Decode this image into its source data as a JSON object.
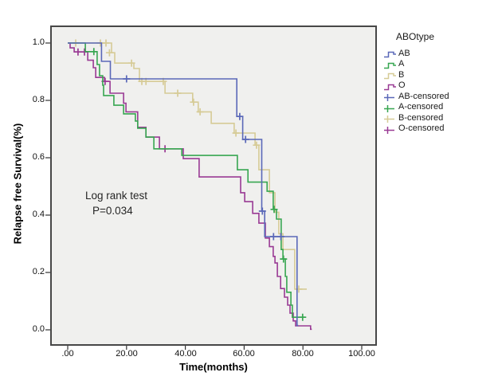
{
  "chart_data": {
    "type": "line",
    "subtype": "kaplan-meier-step",
    "title": "",
    "xlabel": "Time(months)",
    "ylabel": "Relapse free Survival(%)",
    "xlim": [
      -5.7,
      104.9
    ],
    "ylim": [
      -0.053,
      1.058
    ],
    "grid": false,
    "legend_position": "right-outside",
    "legend_title": "ABOtype",
    "legend_items": [
      "AB",
      "A",
      "B",
      "O",
      "AB-censored",
      "A-censored",
      "B-censored",
      "O-censored"
    ],
    "x_ticks": [
      0,
      20,
      40,
      60,
      80,
      100
    ],
    "x_tick_labels": [
      ".00",
      "20.00",
      "40.00",
      "60.00",
      "80.00",
      "100.00"
    ],
    "y_ticks": [
      0,
      0.2,
      0.4,
      0.6,
      0.8,
      1.0
    ],
    "y_tick_labels": [
      "0.0",
      "0.2",
      "0.4",
      "0.6",
      "0.8",
      "1.0"
    ],
    "annotation": {
      "line1": "Log rank test",
      "line2": "P=0.034"
    },
    "plot_bg": "#f0f0ee",
    "frame_color": "#474747",
    "axis_color": "#333333",
    "draw_order": [
      3,
      2,
      1,
      0
    ],
    "series": [
      {
        "name": "AB",
        "color": "#5a68b8",
        "steps": [
          [
            11.5,
            0.936
          ],
          [
            14.5,
            0.875
          ],
          [
            57.5,
            0.744
          ],
          [
            59.5,
            0.664
          ],
          [
            66,
            0.414
          ],
          [
            67,
            0.325
          ],
          [
            78,
            0.015
          ]
        ],
        "end_t": 78.4,
        "censored": [
          [
            20,
            0.875
          ],
          [
            58.5,
            0.744
          ],
          [
            60.5,
            0.664
          ],
          [
            66.2,
            0.414
          ],
          [
            70,
            0.325
          ],
          [
            72.5,
            0.325
          ]
        ]
      },
      {
        "name": "A",
        "color": "#37a650",
        "steps": [
          [
            6,
            0.97
          ],
          [
            10,
            0.925
          ],
          [
            10.8,
            0.886
          ],
          [
            11.9,
            0.853
          ],
          [
            12.2,
            0.817
          ],
          [
            15.7,
            0.783
          ],
          [
            19,
            0.753
          ],
          [
            23,
            0.728
          ],
          [
            23.8,
            0.703
          ],
          [
            26.6,
            0.672
          ],
          [
            29.3,
            0.631
          ],
          [
            38.8,
            0.608
          ],
          [
            57.7,
            0.558
          ],
          [
            61.3,
            0.515
          ],
          [
            67.8,
            0.483
          ],
          [
            69.9,
            0.42
          ],
          [
            71,
            0.386
          ],
          [
            72.6,
            0.28
          ],
          [
            73.2,
            0.247
          ],
          [
            74,
            0.186
          ],
          [
            74.5,
            0.131
          ],
          [
            75.9,
            0.086
          ],
          [
            76.4,
            0.044
          ]
        ],
        "end_t": 80.7,
        "censored": [
          [
            8.9,
            0.97
          ],
          [
            70.2,
            0.42
          ],
          [
            73.4,
            0.247
          ],
          [
            79.9,
            0.044
          ]
        ]
      },
      {
        "name": "B",
        "color": "#d6cb96",
        "steps": [
          [
            14.9,
            0.966
          ],
          [
            16,
            0.93
          ],
          [
            22.5,
            0.911
          ],
          [
            24.4,
            0.866
          ],
          [
            33.1,
            0.825
          ],
          [
            42.5,
            0.794
          ],
          [
            44.4,
            0.76
          ],
          [
            48.8,
            0.72
          ],
          [
            56.6,
            0.686
          ],
          [
            63.7,
            0.644
          ],
          [
            65,
            0.558
          ],
          [
            68.6,
            0.478
          ],
          [
            70.5,
            0.41
          ],
          [
            71.8,
            0.335
          ],
          [
            73.2,
            0.28
          ],
          [
            77.2,
            0.142
          ]
        ],
        "end_t": 81.3,
        "censored": [
          [
            2.7,
            1.0
          ],
          [
            11.1,
            1.0
          ],
          [
            13,
            1.0
          ],
          [
            14.2,
            0.966
          ],
          [
            21.7,
            0.93
          ],
          [
            25.2,
            0.866
          ],
          [
            26.6,
            0.866
          ],
          [
            32.5,
            0.866
          ],
          [
            37.4,
            0.825
          ],
          [
            42.8,
            0.794
          ],
          [
            45,
            0.76
          ],
          [
            57.2,
            0.686
          ],
          [
            64.2,
            0.644
          ],
          [
            78.6,
            0.142
          ]
        ]
      },
      {
        "name": "O",
        "color": "#993a94",
        "steps": [
          [
            0.8,
            0.983
          ],
          [
            2.2,
            0.969
          ],
          [
            6.8,
            0.94
          ],
          [
            8.7,
            0.914
          ],
          [
            9.5,
            0.88
          ],
          [
            12.5,
            0.866
          ],
          [
            14.4,
            0.825
          ],
          [
            19,
            0.79
          ],
          [
            19.8,
            0.76
          ],
          [
            23.8,
            0.706
          ],
          [
            26.6,
            0.672
          ],
          [
            31.2,
            0.631
          ],
          [
            39.3,
            0.597
          ],
          [
            44.7,
            0.533
          ],
          [
            58.8,
            0.478
          ],
          [
            60.2,
            0.447
          ],
          [
            62.9,
            0.406
          ],
          [
            65,
            0.372
          ],
          [
            67.2,
            0.32
          ],
          [
            68.6,
            0.29
          ],
          [
            69.9,
            0.256
          ],
          [
            70.5,
            0.233
          ],
          [
            71.3,
            0.186
          ],
          [
            72.4,
            0.144
          ],
          [
            73.7,
            0.114
          ],
          [
            74.8,
            0.086
          ],
          [
            75.6,
            0.058
          ],
          [
            76.7,
            0.031
          ],
          [
            77.5,
            0.014
          ],
          [
            82.6,
            0.002
          ]
        ],
        "end_t": 83,
        "censored": [
          [
            3.5,
            0.969
          ],
          [
            5.7,
            0.969
          ],
          [
            12.7,
            0.866
          ],
          [
            33.1,
            0.631
          ]
        ]
      }
    ]
  }
}
